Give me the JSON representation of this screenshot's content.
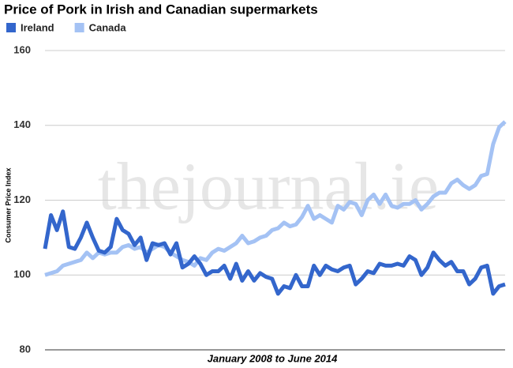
{
  "chart_data": {
    "type": "line",
    "title": "Price of Pork in Irish and Canadian supermarkets",
    "watermark": "thejournal.ie",
    "x_label": "January 2008 to June 2014",
    "y_label": "Consumer Price Index",
    "ylim": [
      80,
      160
    ],
    "yticks": [
      80,
      100,
      120,
      140,
      160
    ],
    "grid": true,
    "legend": "top-left",
    "series": [
      {
        "name": "Ireland",
        "color": "#3366cc",
        "values": [
          107,
          116,
          112,
          117,
          107.5,
          107,
          110,
          114,
          110,
          106.5,
          106,
          107.5,
          115,
          112,
          111,
          108,
          110,
          104,
          108.5,
          108,
          108.5,
          105.5,
          108.5,
          102,
          103,
          105,
          103,
          100,
          101,
          101,
          102.5,
          99,
          103,
          98.5,
          101,
          98.5,
          100.5,
          99.5,
          99,
          95,
          97,
          96.5,
          100,
          97,
          97,
          102.5,
          100,
          102.5,
          101.5,
          101,
          102,
          102.5,
          97.5,
          99,
          101,
          100.5,
          103,
          102.5,
          102.5,
          103,
          102.5,
          105,
          104,
          100,
          102,
          106,
          104,
          102.5,
          103.5,
          101,
          101,
          97.5,
          99,
          102,
          102.5,
          95,
          97,
          97.5
        ]
      },
      {
        "name": "Canada",
        "color": "#a4c2f4",
        "values": [
          100,
          100.5,
          101,
          102.5,
          103,
          103.5,
          104,
          106,
          104.5,
          106,
          105.5,
          106,
          106,
          107.5,
          108,
          107,
          107.5,
          106,
          107,
          108,
          107.5,
          106,
          105,
          104,
          103.5,
          102.5,
          104.5,
          104,
          106,
          107,
          106.5,
          107.5,
          108.5,
          110.5,
          108.5,
          109,
          110,
          110.5,
          112,
          112.5,
          114,
          113,
          113.5,
          115.5,
          118.5,
          115,
          116,
          115,
          114,
          118.5,
          117.5,
          119.5,
          119,
          116,
          120,
          121.5,
          119,
          121.5,
          118.5,
          118,
          119,
          119,
          120,
          117.5,
          119,
          121,
          122,
          122,
          124.5,
          125.5,
          124,
          123,
          124,
          126.5,
          127,
          135,
          139.5,
          141
        ]
      }
    ]
  }
}
